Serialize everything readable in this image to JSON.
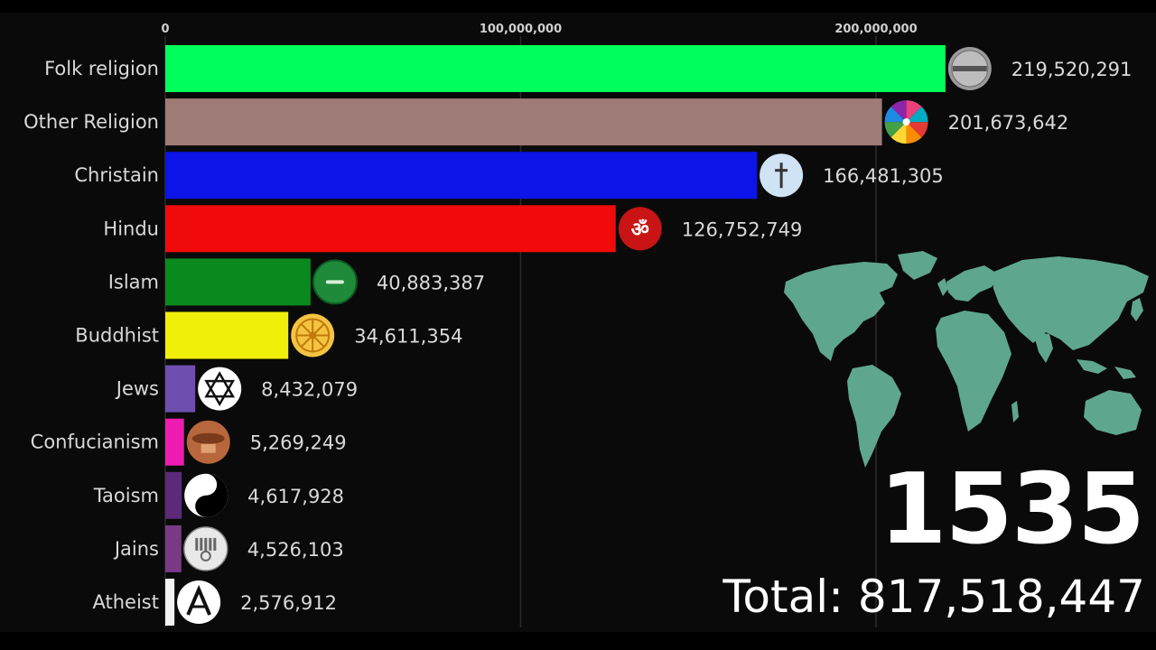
{
  "chart_data": {
    "type": "bar",
    "orientation": "horizontal",
    "categories": [
      "Folk religion",
      "Other Religion",
      "Christain",
      "Hindu",
      "Islam",
      "Buddhist",
      "Jews",
      "Confucianism",
      "Taoism",
      "Jains",
      "Atheist"
    ],
    "values": [
      219520291,
      201673642,
      166481305,
      126752749,
      40883387,
      34611354,
      8432079,
      5269249,
      4617928,
      4526103,
      2576912
    ],
    "value_labels": [
      "219,520,291",
      "201,673,642",
      "166,481,305",
      "126,752,749",
      "40,883,387",
      "34,611,354",
      "8,432,079",
      "5,269,249",
      "4,617,928",
      "4,526,103",
      "2,576,912"
    ],
    "colors": [
      "#00ff5a",
      "#9e7b76",
      "#0c14e8",
      "#f00a0a",
      "#0a8a1e",
      "#f0ef0a",
      "#6e4fb0",
      "#ee1cb0",
      "#5c2a78",
      "#7a3a86",
      "#f2f2f2"
    ],
    "icons": [
      "folk-icon",
      "rainbow-spiral-icon",
      "cross-icon",
      "om-icon",
      "islam-icon",
      "dharma-wheel-icon",
      "star-of-david-icon",
      "confucius-icon",
      "yin-yang-icon",
      "jain-icon",
      "atheist-icon"
    ],
    "xlim": [
      0,
      220000000
    ],
    "ticks": [
      0,
      100000000,
      200000000
    ],
    "tick_labels": [
      "0",
      "100,000,000",
      "200,000,000"
    ],
    "grid": true,
    "year": "1535",
    "total": "Total: 817,518,447"
  }
}
